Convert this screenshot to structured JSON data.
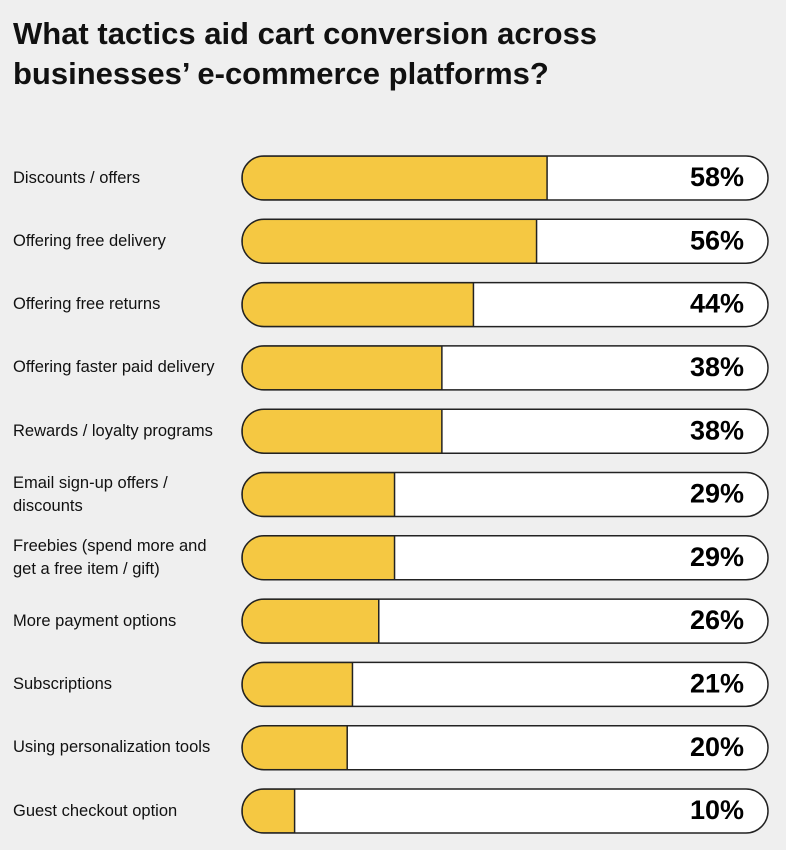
{
  "chart_data": {
    "type": "bar",
    "orientation": "horizontal",
    "title": "What tactics aid cart conversion across businesses’ e-commerce platforms?",
    "categories": [
      "Discounts / offers",
      "Offering free delivery",
      "Offering free returns",
      "Offering faster paid delivery",
      "Rewards / loyalty programs",
      "Email sign-up offers / discounts",
      "Freebies (spend more and get a free item / gift)",
      "More payment options",
      "Subscriptions",
      "Using personalization tools",
      "Guest checkout option"
    ],
    "values": [
      58,
      56,
      44,
      38,
      38,
      29,
      29,
      26,
      21,
      20,
      10
    ],
    "value_labels": [
      "58%",
      "56%",
      "44%",
      "38%",
      "38%",
      "29%",
      "29%",
      "26%",
      "21%",
      "20%",
      "10%"
    ],
    "color": "#f5c842",
    "xlim": [
      0,
      100
    ]
  }
}
